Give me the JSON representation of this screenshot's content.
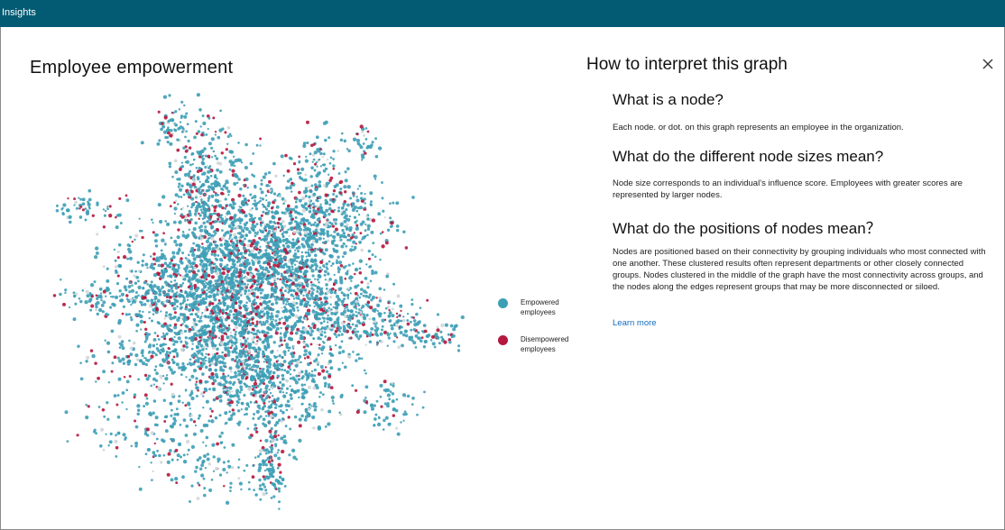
{
  "app": {
    "title": "Insights"
  },
  "left": {
    "title": "Employee empowerment",
    "legend": [
      {
        "label": "Empowered employees",
        "color": "#3d9fb6"
      },
      {
        "label": "Disempowered employees",
        "color": "#b5173e"
      }
    ]
  },
  "panel": {
    "title": "How to interpret this graph",
    "close_icon": "close-icon",
    "sections": [
      {
        "heading": "What is a node?",
        "body": "Each node. or dot. on this graph represents an employee in the organization."
      },
      {
        "heading": "What do the different node sizes mean?",
        "body": "Node size corresponds to an individual’s influence score. Employees with greater scores are represented by larger nodes."
      },
      {
        "heading": "What do the positions of nodes mean？",
        "body": "Nodes are positioned based on their connectivity by grouping individuals who most connected with one another. These clustered results often represent departments or other closely connected groups. Nodes clustered in the middle of the graph have the most connectivity across groups, and the nodes along the edges represent groups that may be more disconnected or siloed."
      }
    ],
    "learn_more": "Learn more"
  },
  "colors": {
    "header": "#035a73",
    "empowered": "#3d9fb6",
    "disempowered": "#b5173e",
    "neutral": "#d2d6d8"
  }
}
